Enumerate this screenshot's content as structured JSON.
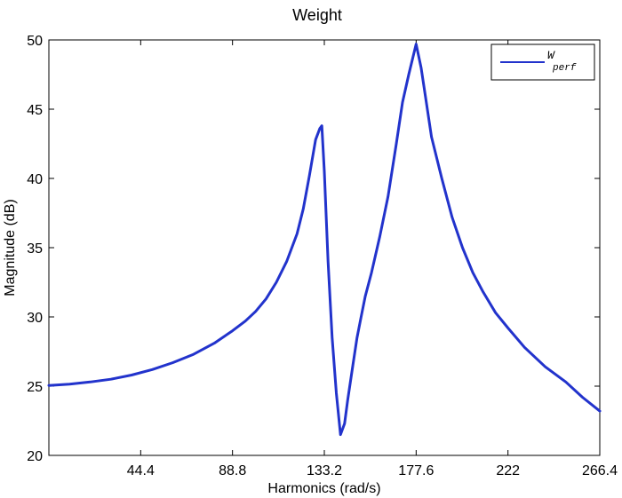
{
  "chart_data": {
    "type": "line",
    "title": "Weight",
    "xlabel": "Harmonics  (rad/s)",
    "ylabel": "Magnitude (dB)",
    "xlim": [
      0,
      266.4
    ],
    "ylim": [
      20,
      50
    ],
    "xticks": [
      44.4,
      88.8,
      133.2,
      177.6,
      222,
      266.4
    ],
    "xtick_labels": [
      "44.4",
      "88.8",
      "133.2",
      "177.6",
      "222",
      "266.4"
    ],
    "yticks": [
      20,
      25,
      30,
      35,
      40,
      45,
      50
    ],
    "ytick_labels": [
      "20",
      "25",
      "30",
      "35",
      "40",
      "45",
      "50"
    ],
    "grid": false,
    "legend": {
      "position": "top-right",
      "symbol": "W",
      "subscript": "perf"
    },
    "series": [
      {
        "color": "#2233cc",
        "x": [
          0,
          10,
          20,
          30,
          40,
          50,
          60,
          70,
          80,
          88.8,
          95,
          100,
          105,
          110,
          115,
          120,
          123,
          126,
          129,
          131,
          132,
          133.2,
          135,
          137,
          139,
          141,
          143,
          144.5,
          147,
          149,
          151,
          153,
          156,
          160,
          164,
          168,
          171,
          174,
          177.6,
          180,
          182,
          185,
          190,
          195,
          200,
          205,
          210,
          216,
          222,
          230,
          240,
          250,
          258,
          266.4
        ],
        "y": [
          25.05,
          25.15,
          25.3,
          25.5,
          25.8,
          26.2,
          26.7,
          27.3,
          28.1,
          29.0,
          29.7,
          30.4,
          31.3,
          32.5,
          34.0,
          36.0,
          37.8,
          40.2,
          42.8,
          43.6,
          43.8,
          40.5,
          34.0,
          28.5,
          24.5,
          21.5,
          22.3,
          24.0,
          26.5,
          28.5,
          30.0,
          31.5,
          33.2,
          35.8,
          38.7,
          42.5,
          45.5,
          47.5,
          49.7,
          48.0,
          46.0,
          43.0,
          40.0,
          37.2,
          35.0,
          33.2,
          31.8,
          30.3,
          29.2,
          27.8,
          26.4,
          25.3,
          24.2,
          23.2
        ]
      }
    ]
  }
}
